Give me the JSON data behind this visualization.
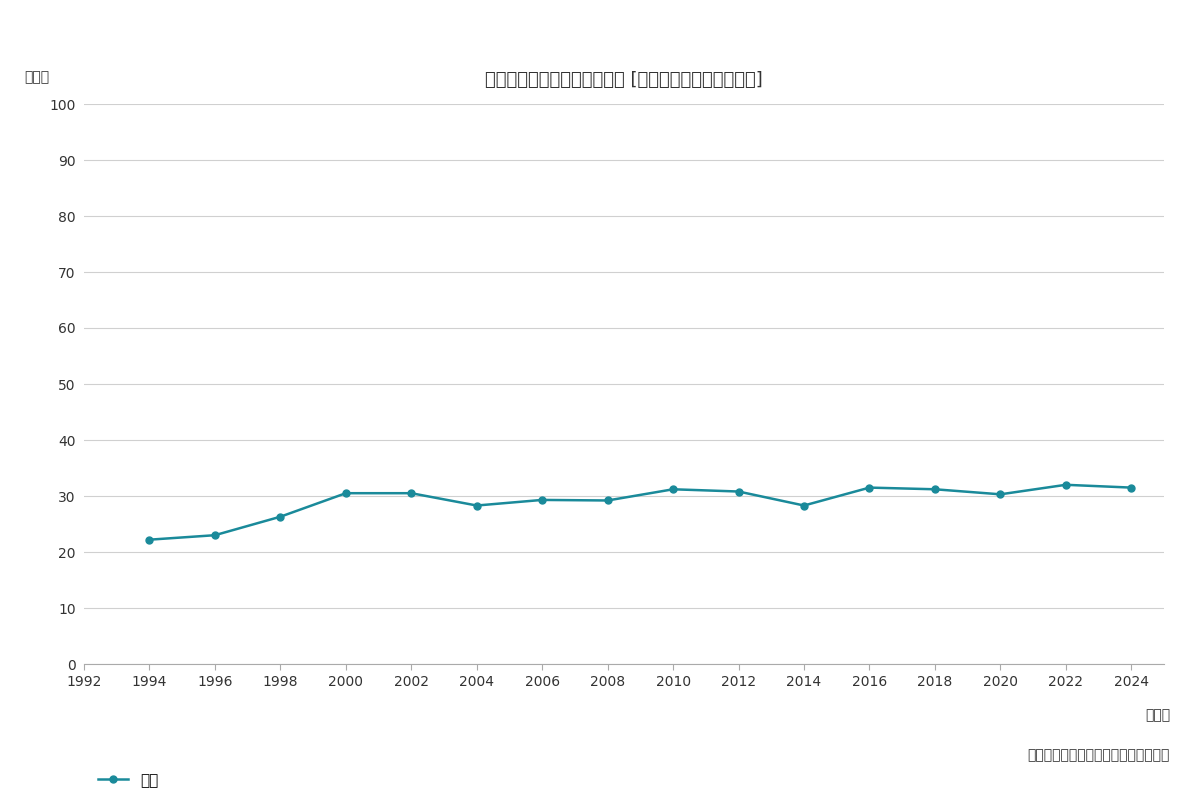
{
  "title": "自分の将来のことがストレス [ストレスを感じる人のみ]",
  "ylabel": "（％）",
  "xlabel_note": "（年）",
  "source_note": "（博報堂生活総研「生活定点」調査）",
  "legend_label": "全体",
  "years": [
    1994,
    1996,
    1998,
    2000,
    2002,
    2004,
    2006,
    2008,
    2010,
    2012,
    2014,
    2016,
    2018,
    2020,
    2022,
    2024
  ],
  "values": [
    22.2,
    23.0,
    26.3,
    30.5,
    30.5,
    28.3,
    29.3,
    29.2,
    31.2,
    30.8,
    28.3,
    31.5,
    31.2,
    30.3,
    32.0,
    31.5
  ],
  "line_color": "#1a8a9a",
  "marker": "o",
  "marker_size": 5,
  "line_width": 1.8,
  "ylim": [
    0,
    100
  ],
  "yticks": [
    0,
    10,
    20,
    30,
    40,
    50,
    60,
    70,
    80,
    90,
    100
  ],
  "xlim_start": 1992,
  "xlim_end": 2025,
  "xticks": [
    1992,
    1994,
    1996,
    1998,
    2000,
    2002,
    2004,
    2006,
    2008,
    2010,
    2012,
    2014,
    2016,
    2018,
    2020,
    2022,
    2024
  ],
  "grid_color": "#d0d0d0",
  "background_color": "#ffffff",
  "title_fontsize": 13,
  "axis_fontsize": 10,
  "tick_fontsize": 10
}
